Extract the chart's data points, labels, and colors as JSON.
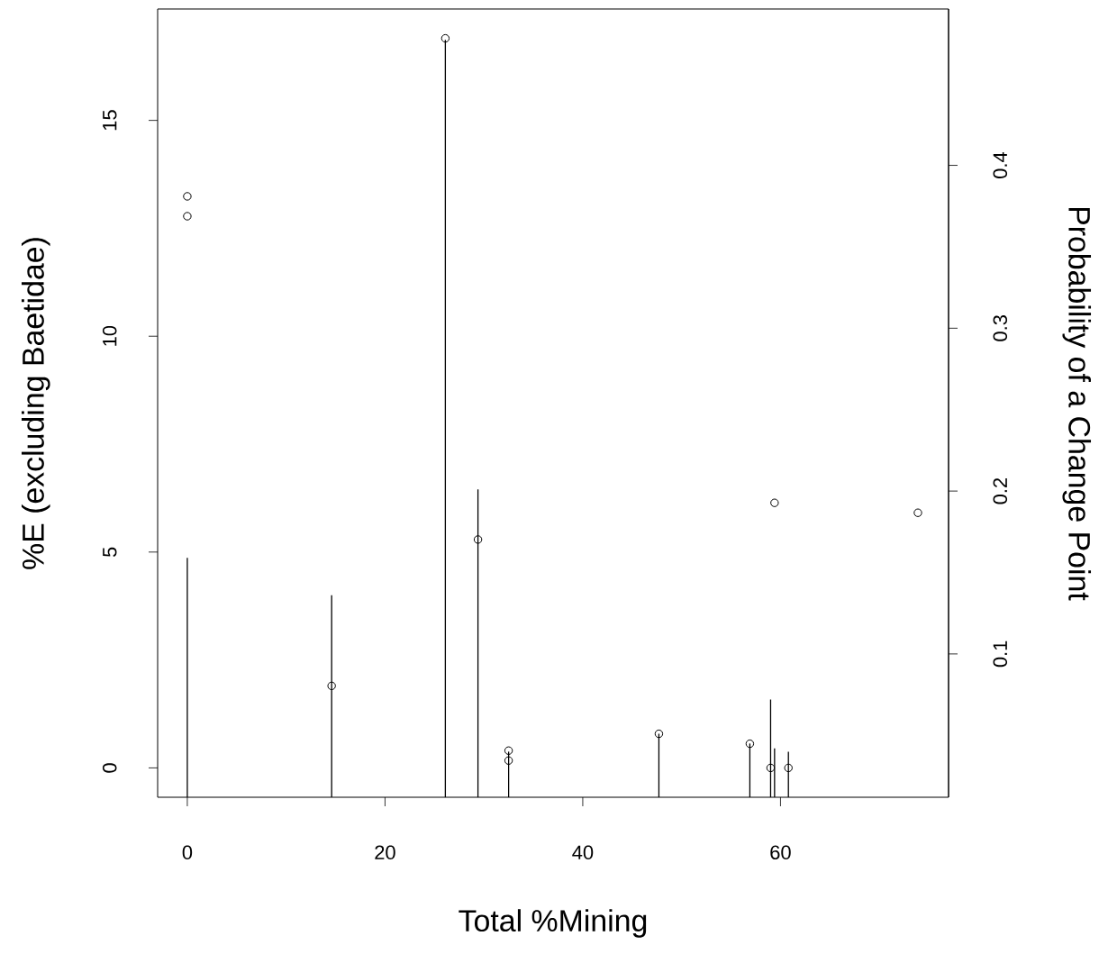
{
  "chart_data": {
    "type": "scatter",
    "xlabel": "Total %Mining",
    "ylabel": "%E (excluding Baetidae)",
    "y2label": "Probability of a Change Point",
    "xlim": [
      -3,
      77
    ],
    "xticks": [
      0,
      20,
      40,
      60
    ],
    "ylim": [
      -0.68,
      17.58
    ],
    "yticks": [
      0,
      5,
      10,
      15
    ],
    "y2lim": [
      0.012,
      0.496
    ],
    "y2ticks": [
      0.1,
      0.2,
      0.3,
      0.4
    ],
    "marker": "circle",
    "grid": false,
    "series": [
      {
        "color": "#000000",
        "x": [
          0,
          0,
          14.6,
          26.1,
          29.4,
          32.5,
          32.5,
          47.7,
          56.9,
          59.0,
          59.4,
          60.8,
          73.9
        ],
        "values": [
          13.24,
          12.78,
          1.9,
          16.9,
          5.29,
          0.4,
          0.17,
          0.79,
          0.56,
          0,
          6.14,
          0,
          5.91
        ]
      },
      {
        "type": "bar",
        "axis": "y2",
        "color": "#000000",
        "x": [
          0,
          14.6,
          26.1,
          29.4,
          32.5,
          47.7,
          56.9,
          59.0,
          59.4,
          60.8
        ],
        "values": [
          0.159,
          0.136,
          0.477,
          0.201,
          0.04,
          0.051,
          0.045,
          0.072,
          0.042,
          0.04
        ]
      }
    ]
  }
}
